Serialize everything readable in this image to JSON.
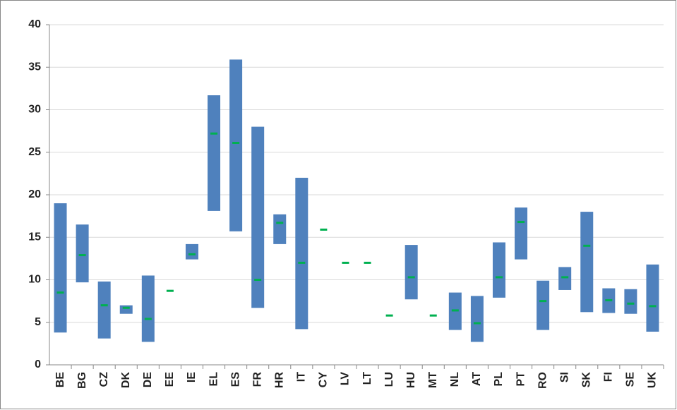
{
  "chart_data": {
    "type": "range",
    "categories": [
      "BE",
      "BG",
      "CZ",
      "DK",
      "DE",
      "EE",
      "IE",
      "EL",
      "ES",
      "FR",
      "HR",
      "IT",
      "CY",
      "LV",
      "LT",
      "LU",
      "HU",
      "MT",
      "NL",
      "AT",
      "PL",
      "PT",
      "RO",
      "SI",
      "SK",
      "FI",
      "SE",
      "UK"
    ],
    "low": [
      3.8,
      9.7,
      3.1,
      6.0,
      2.7,
      null,
      12.4,
      18.1,
      15.7,
      6.7,
      14.2,
      4.2,
      null,
      null,
      null,
      null,
      7.7,
      null,
      4.1,
      2.7,
      7.9,
      12.4,
      4.1,
      8.8,
      6.2,
      6.1,
      6.0,
      3.9
    ],
    "high": [
      19.0,
      16.5,
      9.8,
      7.0,
      10.5,
      null,
      14.2,
      31.7,
      35.9,
      28.0,
      17.7,
      22.0,
      null,
      null,
      null,
      null,
      14.1,
      null,
      8.5,
      8.1,
      14.4,
      18.5,
      9.9,
      11.5,
      18.0,
      9.0,
      8.9,
      11.8
    ],
    "mid": [
      8.5,
      12.9,
      7.0,
      6.7,
      5.4,
      8.7,
      13.0,
      27.2,
      26.1,
      10.0,
      16.7,
      12.0,
      15.9,
      12.0,
      12.0,
      5.8,
      10.3,
      5.8,
      6.4,
      4.9,
      10.3,
      16.8,
      7.5,
      10.3,
      14.0,
      7.6,
      7.2,
      6.9
    ],
    "bar_color": "#4f81bd",
    "marker_color": "#00b050",
    "ylim": [
      0,
      40
    ],
    "yticks": [
      0,
      5,
      10,
      15,
      20,
      25,
      30,
      35,
      40
    ],
    "grid": true
  }
}
